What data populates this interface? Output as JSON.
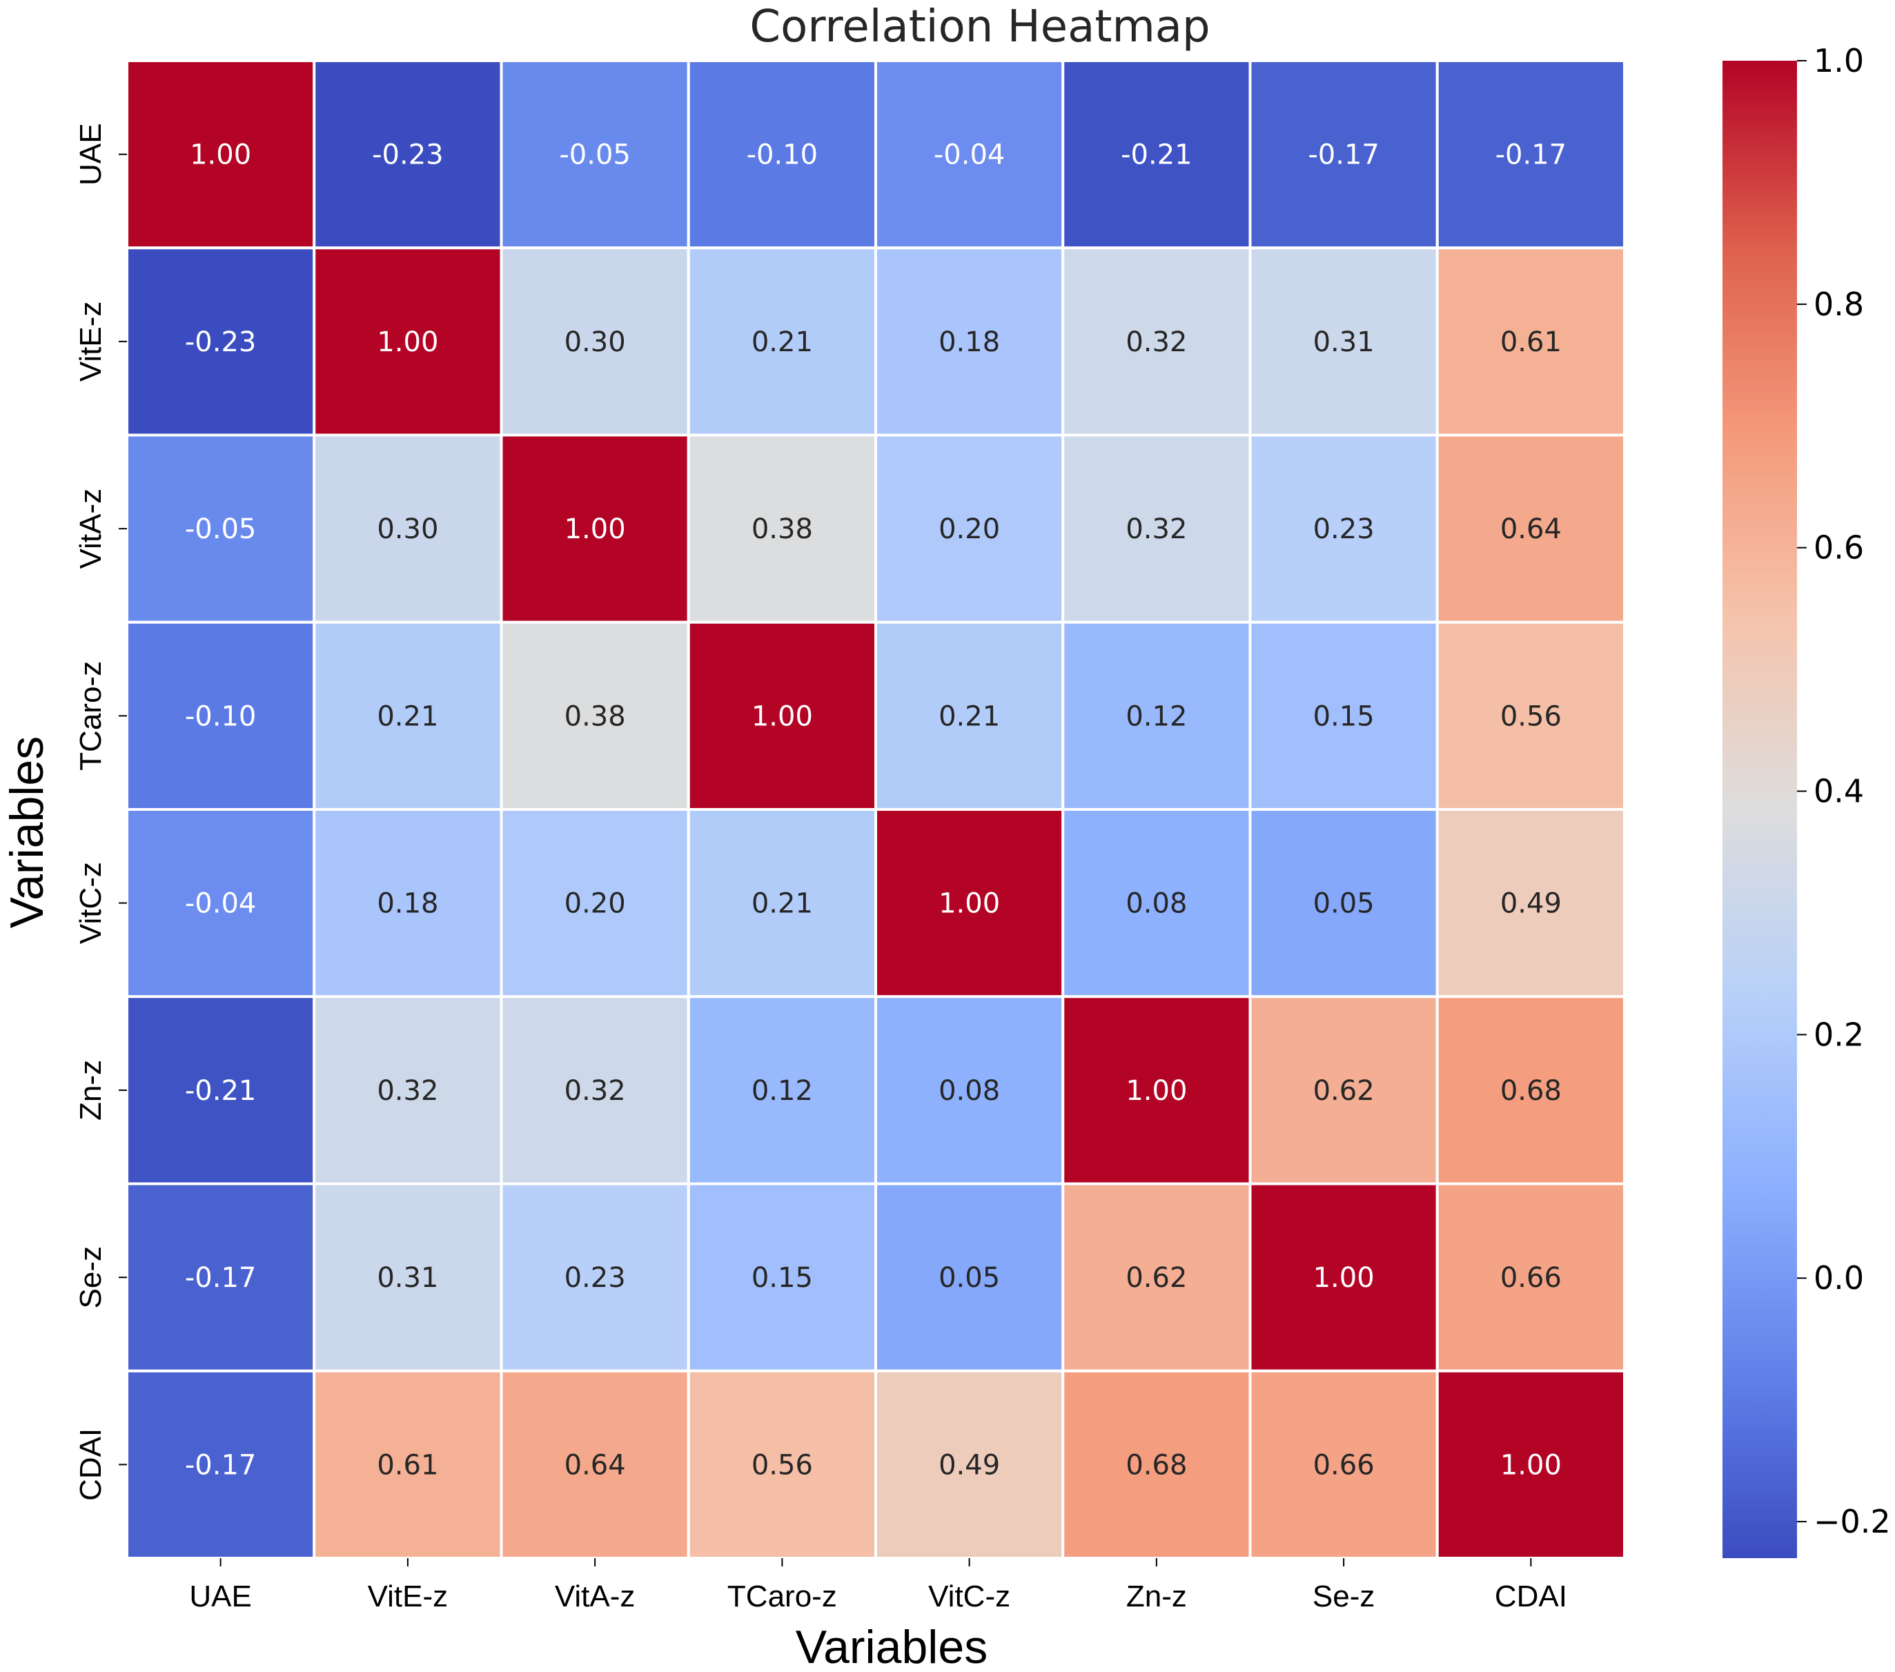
{
  "chart_data": {
    "type": "heatmap",
    "title": "Correlation Heatmap",
    "xlabel": "Variables",
    "ylabel": "Variables",
    "categories": [
      "UAE",
      "VitE-z",
      "VitA-z",
      "TCaro-z",
      "VitC-z",
      "Zn-z",
      "Se-z",
      "CDAI"
    ],
    "values": [
      [
        1.0,
        -0.23,
        -0.05,
        -0.1,
        -0.04,
        -0.21,
        -0.17,
        -0.17
      ],
      [
        -0.23,
        1.0,
        0.3,
        0.21,
        0.18,
        0.32,
        0.31,
        0.61
      ],
      [
        -0.05,
        0.3,
        1.0,
        0.38,
        0.2,
        0.32,
        0.23,
        0.64
      ],
      [
        -0.1,
        0.21,
        0.38,
        1.0,
        0.21,
        0.12,
        0.15,
        0.56
      ],
      [
        -0.04,
        0.18,
        0.2,
        0.21,
        1.0,
        0.08,
        0.05,
        0.49
      ],
      [
        -0.21,
        0.32,
        0.32,
        0.12,
        0.08,
        1.0,
        0.62,
        0.68
      ],
      [
        -0.17,
        0.31,
        0.23,
        0.15,
        0.05,
        0.62,
        1.0,
        0.66
      ],
      [
        -0.17,
        0.61,
        0.64,
        0.56,
        0.49,
        0.68,
        0.66,
        1.0
      ]
    ],
    "value_labels": [
      [
        "1.00",
        "-0.23",
        "-0.05",
        "-0.10",
        "-0.04",
        "-0.21",
        "-0.17",
        "-0.17"
      ],
      [
        "-0.23",
        "1.00",
        "0.30",
        "0.21",
        "0.18",
        "0.32",
        "0.31",
        "0.61"
      ],
      [
        "-0.05",
        "0.30",
        "1.00",
        "0.38",
        "0.20",
        "0.32",
        "0.23",
        "0.64"
      ],
      [
        "-0.10",
        "0.21",
        "0.38",
        "1.00",
        "0.21",
        "0.12",
        "0.15",
        "0.56"
      ],
      [
        "-0.04",
        "0.18",
        "0.20",
        "0.21",
        "1.00",
        "0.08",
        "0.05",
        "0.49"
      ],
      [
        "-0.21",
        "0.32",
        "0.32",
        "0.12",
        "0.08",
        "1.00",
        "0.62",
        "0.68"
      ],
      [
        "-0.17",
        "0.31",
        "0.23",
        "0.15",
        "0.05",
        "0.62",
        "1.00",
        "0.66"
      ],
      [
        "-0.17",
        "0.61",
        "0.64",
        "0.56",
        "0.49",
        "0.68",
        "0.66",
        "1.00"
      ]
    ],
    "colormap": "coolwarm",
    "vmin": -0.23,
    "vmax": 1.0,
    "colorbar_ticks": [
      -0.2,
      0.0,
      0.2,
      0.4,
      0.6,
      0.8,
      1.0
    ],
    "colorbar_tick_labels": [
      "−0.2",
      "0.0",
      "0.2",
      "0.4",
      "0.6",
      "0.8",
      "1.0"
    ],
    "annotation_colors": {
      "dark": "#262626",
      "light": "#ffffff"
    }
  }
}
